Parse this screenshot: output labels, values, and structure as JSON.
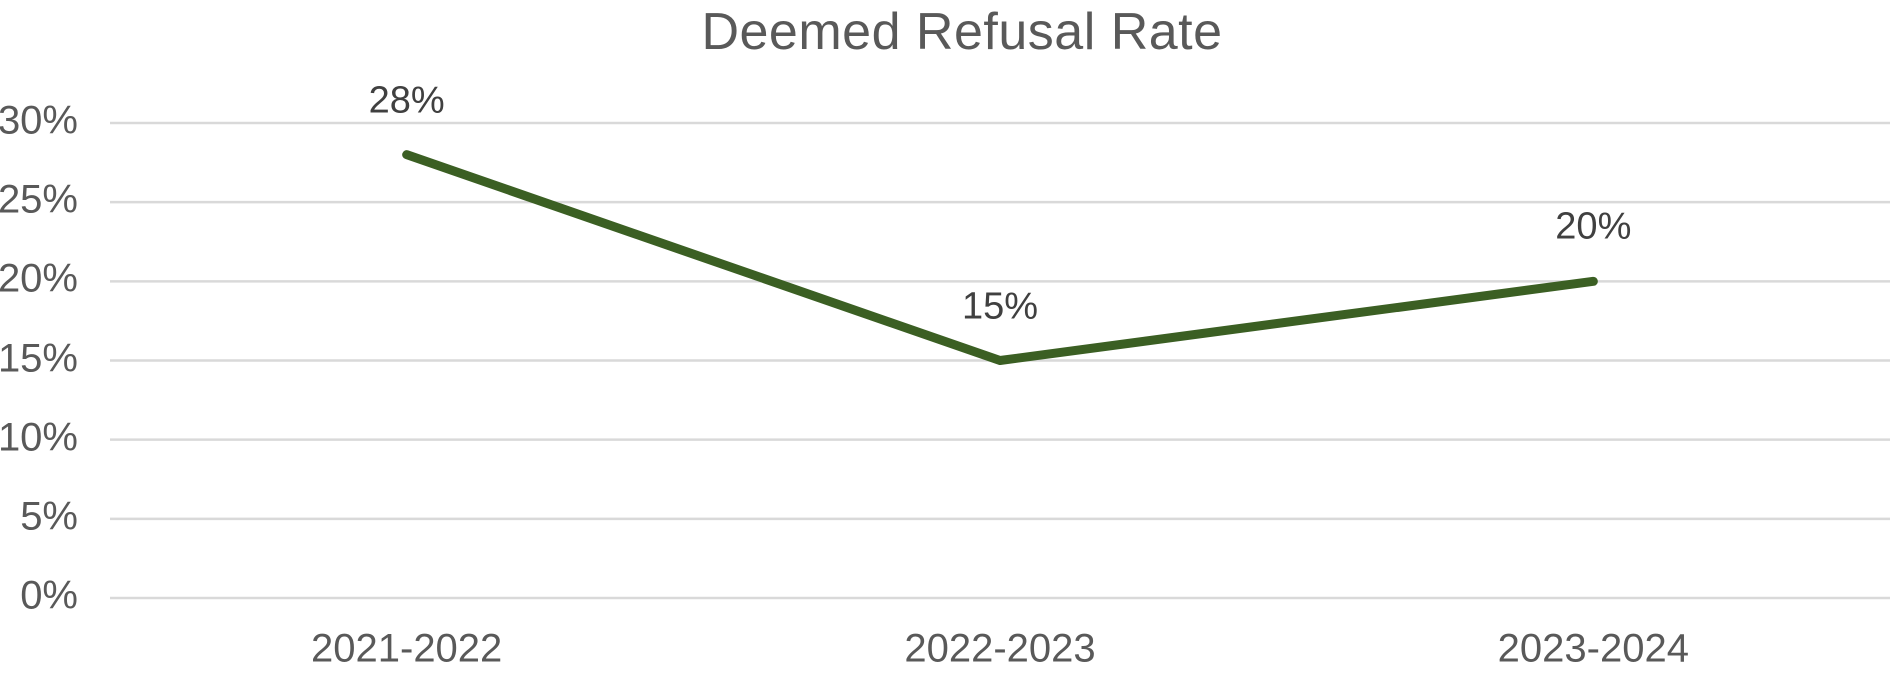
{
  "title": "Deemed Refusal Rate",
  "colors": {
    "background": "#FFFFFF",
    "line": "#3B5F23",
    "gridline": "#D9D9D9",
    "axis_label": "#595959",
    "data_label": "#404040",
    "title": "#595959"
  },
  "chart_data": {
    "type": "line",
    "title": "Deemed Refusal Rate",
    "categories": [
      "2021-2022",
      "2022-2023",
      "2023-2024"
    ],
    "series": [
      {
        "name": "Deemed Refusal Rate",
        "values": [
          28,
          15,
          20
        ]
      }
    ],
    "data_labels": [
      "28%",
      "15%",
      "20%"
    ],
    "y_ticks": [
      "30%",
      "25%",
      "20%",
      "15%",
      "10%",
      "5%",
      "0%"
    ],
    "y_tick_values": [
      30,
      25,
      20,
      15,
      10,
      5,
      0
    ],
    "ylim": [
      0,
      30
    ],
    "xlabel": "",
    "ylabel": "",
    "grid": "horizontal",
    "legend": "none",
    "line_width": 9,
    "data_label_position": "above"
  }
}
